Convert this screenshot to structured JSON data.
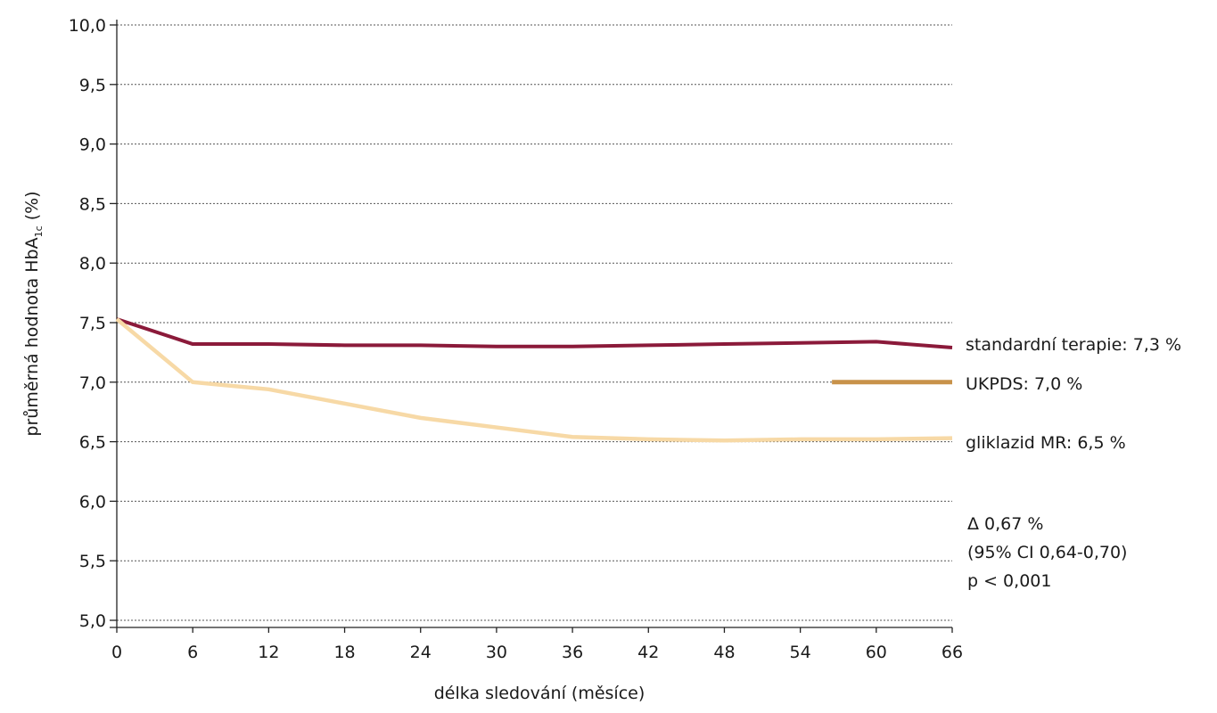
{
  "chart_data": {
    "type": "line",
    "ylabel": "průměrná hodnota HbA",
    "ylabel_subscript": "1c",
    "ylabel_suffix": " (%)",
    "xlabel": "délka sledování (měsíce)",
    "x_ticks": [
      0,
      6,
      12,
      18,
      24,
      30,
      36,
      42,
      48,
      54,
      60,
      66
    ],
    "y_ticks": [
      "5,0",
      "5,5",
      "6,0",
      "6,5",
      "7,0",
      "7,5",
      "8,0",
      "8,5",
      "9,0",
      "9,5",
      "10,0"
    ],
    "xlim": [
      0,
      66
    ],
    "ylim": [
      5.0,
      10.0
    ],
    "grid": "horizontal dotted",
    "series": [
      {
        "name": "standardní terapie: 7,3 %",
        "color": "#8b1a3a",
        "x": [
          0,
          6,
          12,
          18,
          24,
          30,
          36,
          42,
          48,
          54,
          60,
          66
        ],
        "y": [
          7.53,
          7.32,
          7.32,
          7.31,
          7.31,
          7.3,
          7.3,
          7.31,
          7.32,
          7.33,
          7.34,
          7.29
        ]
      },
      {
        "name": "UKPDS: 7,0 %",
        "color": "#c8924a",
        "x": [
          56.5,
          66
        ],
        "y": [
          7.0,
          7.0
        ]
      },
      {
        "name": "gliklazid MR: 6,5 %",
        "color": "#f7d9a6",
        "x": [
          0,
          6,
          12,
          18,
          24,
          30,
          36,
          42,
          48,
          54,
          60,
          66
        ],
        "y": [
          7.53,
          7.0,
          6.94,
          6.82,
          6.7,
          6.62,
          6.54,
          6.52,
          6.51,
          6.52,
          6.52,
          6.53
        ]
      }
    ],
    "annotations": [
      "Δ 0,67 %",
      "(95% CI 0,64-0,70)",
      "p < 0,001"
    ]
  }
}
